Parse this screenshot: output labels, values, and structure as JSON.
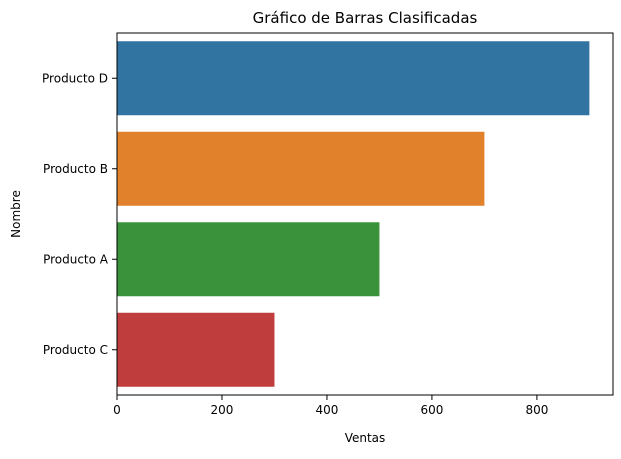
{
  "chart_data": {
    "type": "bar",
    "orientation": "horizontal",
    "title": "Gráfico de Barras Clasificadas",
    "xlabel": "Ventas",
    "ylabel": "Nombre",
    "categories": [
      "Producto D",
      "Producto B",
      "Producto A",
      "Producto C"
    ],
    "values": [
      900,
      700,
      500,
      300
    ],
    "colors": [
      "#3274a1",
      "#e1812c",
      "#3a923a",
      "#c03d3e"
    ],
    "xlim": [
      0,
      945
    ],
    "xticks": [
      0,
      200,
      400,
      600,
      800
    ],
    "grid": false,
    "legend": false
  }
}
